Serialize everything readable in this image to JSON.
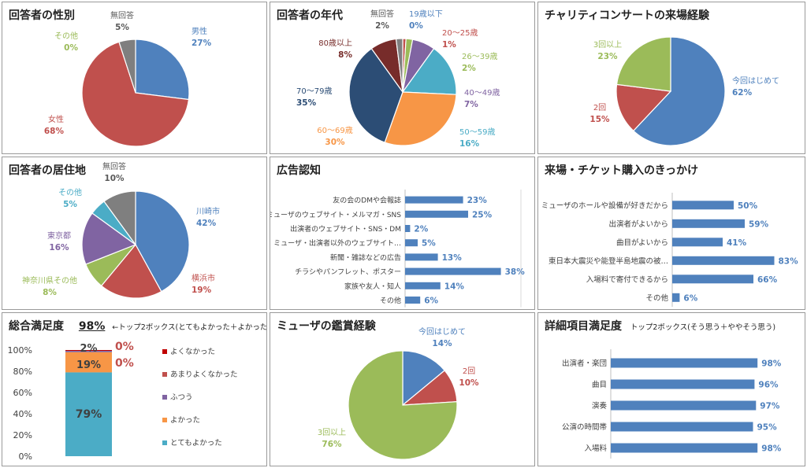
{
  "colors": {
    "blue": "#4f81bd",
    "red": "#c0504d",
    "green": "#9bbb59",
    "purple": "#8064a2",
    "aqua": "#4bacc6",
    "orange": "#f79646",
    "navy": "#2c4d75",
    "darkred": "#772c2a",
    "gray": "#7f7f7f",
    "darkgreen": "#4f6228"
  },
  "chart_data": [
    {
      "id": "gender",
      "type": "pie",
      "title": "回答者の性別",
      "slices": [
        {
          "label": "男性",
          "value": 27,
          "pct": "27%",
          "color": "#4f81bd"
        },
        {
          "label": "女性",
          "value": 68,
          "pct": "68%",
          "color": "#c0504d"
        },
        {
          "label": "その他",
          "value": 0,
          "pct": "0%",
          "color": "#9bbb59"
        },
        {
          "label": "無回答",
          "value": 5,
          "pct": "5%",
          "color": "#7f7f7f"
        }
      ]
    },
    {
      "id": "age",
      "type": "pie",
      "title": "回答者の年代",
      "slices": [
        {
          "label": "19歳以下",
          "value": 0,
          "pct": "0%",
          "color": "#4f81bd"
        },
        {
          "label": "20～25歳",
          "value": 1,
          "pct": "1%",
          "color": "#c0504d"
        },
        {
          "label": "26～39歳",
          "value": 2,
          "pct": "2%",
          "color": "#9bbb59"
        },
        {
          "label": "40～49歳",
          "value": 7,
          "pct": "7%",
          "color": "#8064a2"
        },
        {
          "label": "50～59歳",
          "value": 16,
          "pct": "16%",
          "color": "#4bacc6"
        },
        {
          "label": "60～69歳",
          "value": 30,
          "pct": "30%",
          "color": "#f79646"
        },
        {
          "label": "70～79歳",
          "value": 35,
          "pct": "35%",
          "color": "#2c4d75"
        },
        {
          "label": "80歳以上",
          "value": 8,
          "pct": "8%",
          "color": "#772c2a"
        },
        {
          "label": "無回答",
          "value": 2,
          "pct": "2%",
          "color": "#7f7f7f"
        }
      ]
    },
    {
      "id": "visits",
      "type": "pie",
      "title": "チャリティコンサートの来場経験",
      "slices": [
        {
          "label": "今回はじめて",
          "value": 62,
          "pct": "62%",
          "color": "#4f81bd"
        },
        {
          "label": "2回",
          "value": 15,
          "pct": "15%",
          "color": "#c0504d"
        },
        {
          "label": "3回以上",
          "value": 23,
          "pct": "23%",
          "color": "#9bbb59"
        }
      ]
    },
    {
      "id": "residence",
      "type": "pie",
      "title": "回答者の居住地",
      "slices": [
        {
          "label": "川崎市",
          "value": 42,
          "pct": "42%",
          "color": "#4f81bd"
        },
        {
          "label": "横浜市",
          "value": 19,
          "pct": "19%",
          "color": "#c0504d"
        },
        {
          "label": "神奈川県その他",
          "value": 8,
          "pct": "8%",
          "color": "#9bbb59"
        },
        {
          "label": "東京都",
          "value": 16,
          "pct": "16%",
          "color": "#8064a2"
        },
        {
          "label": "その他",
          "value": 5,
          "pct": "5%",
          "color": "#4bacc6"
        },
        {
          "label": "無回答",
          "value": 10,
          "pct": "10%",
          "color": "#7f7f7f"
        }
      ]
    },
    {
      "id": "ads",
      "type": "bar",
      "title": "広告認知",
      "xlim": [
        0,
        50
      ],
      "categories": [
        "友の会のDMや会報誌",
        "ミューザのウェブサイト・メルマガ・SNS",
        "出演者のウェブサイト・SNS・DM",
        "ミューザ・出演者以外のウェブサイト…",
        "新聞・雑誌などの広告",
        "チラシやパンフレット、ポスター",
        "家族や友人・知人",
        "その他"
      ],
      "values": [
        23,
        25,
        2,
        5,
        13,
        38,
        14,
        6
      ],
      "value_labels": [
        "23%",
        "25%",
        "2%",
        "5%",
        "13%",
        "38%",
        "14%",
        "6%"
      ]
    },
    {
      "id": "motive",
      "type": "bar",
      "title": "来場・チケット購入のきっかけ",
      "xlim": [
        0,
        100
      ],
      "categories": [
        "ミューザのホールや設備が好きだから",
        "出演者がよいから",
        "曲目がよいから",
        "東日本大震災や能登半島地震の被…",
        "入場料で寄付できるから",
        "その他"
      ],
      "values": [
        50,
        59,
        41,
        83,
        66,
        6
      ],
      "value_labels": [
        "50%",
        "59%",
        "41%",
        "83%",
        "66%",
        "6%"
      ]
    },
    {
      "id": "overall",
      "type": "bar",
      "title": "総合満足度",
      "headline_value": "98%",
      "note": "←トップ2ボックス(とてもよかった＋よかった)",
      "ylim": [
        0,
        100
      ],
      "yticks": [
        "0%",
        "20%",
        "40%",
        "60%",
        "80%",
        "100%"
      ],
      "series": [
        {
          "name": "とてもよかった",
          "value": 79,
          "label": "79%",
          "color": "#4bacc6"
        },
        {
          "name": "よかった",
          "value": 19,
          "label": "19%",
          "color": "#f79646"
        },
        {
          "name": "ふつう",
          "value": 2,
          "label": "2%",
          "color": "#8064a2"
        },
        {
          "name": "あまりよくなかった",
          "value": 0,
          "label": "0%",
          "color": "#c0504d"
        },
        {
          "name": "よくなかった",
          "value": 0,
          "label": "0%",
          "color": "#c00000"
        }
      ],
      "legend": [
        "よくなかった",
        "あまりよくなかった",
        "ふつう",
        "よかった",
        "とてもよかった"
      ]
    },
    {
      "id": "muza",
      "type": "pie",
      "title": "ミューザの鑑賞経験",
      "slices": [
        {
          "label": "今回はじめて",
          "value": 14,
          "pct": "14%",
          "color": "#4f81bd"
        },
        {
          "label": "2回",
          "value": 10,
          "pct": "10%",
          "color": "#c0504d"
        },
        {
          "label": "3回以上",
          "value": 76,
          "pct": "76%",
          "color": "#9bbb59"
        }
      ]
    },
    {
      "id": "detail",
      "type": "bar",
      "title": "詳細項目満足度",
      "note": "トップ2ボックス(そう思う＋ややそう思う)",
      "xlim": [
        0,
        100
      ],
      "categories": [
        "出演者・楽団",
        "曲目",
        "演奏",
        "公演の時間帯",
        "入場料"
      ],
      "values": [
        98,
        96,
        97,
        95,
        98
      ],
      "value_labels": [
        "98%",
        "96%",
        "97%",
        "95%",
        "98%"
      ]
    }
  ]
}
